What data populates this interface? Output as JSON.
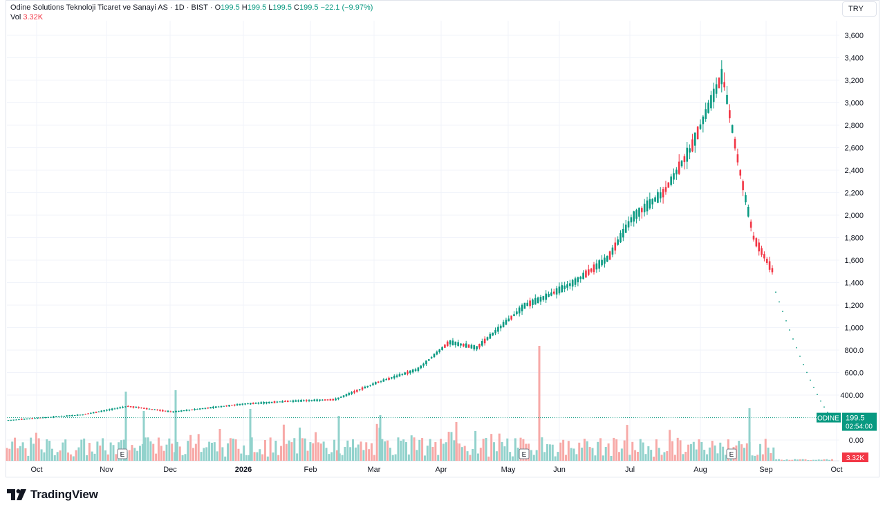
{
  "header": {
    "symbol_name": "Odine Solutions Teknoloji Ticaret ve Sanayi AS",
    "interval": "1D",
    "exchange": "BIST",
    "open_label": "O",
    "open": "199.5",
    "high_label": "H",
    "high": "199.5",
    "low_label": "L",
    "low": "199.5",
    "close_label": "C",
    "close": "199.5",
    "change": "−22.1 (−9.97%)",
    "vol_label": "Vol",
    "vol": "3.32K"
  },
  "currency": "TRY",
  "price_badge": {
    "ticker": "ODINE",
    "price": "199.5",
    "countdown": "02:54:00"
  },
  "volume_badge": "3.32K",
  "brand": "TradingView",
  "colors": {
    "up": "#089981",
    "down": "#f23645",
    "vol_up": "#92d2cc",
    "vol_down": "#f7a9a7",
    "grid": "#f0f3fa"
  },
  "chart_data": {
    "type": "candlestick",
    "y_axis": {
      "ticks": [
        0,
        400,
        600,
        800,
        1000,
        1200,
        1400,
        1600,
        1800,
        2000,
        2200,
        2400,
        2600,
        2800,
        3000,
        3200,
        3400,
        3600
      ],
      "tick_labels": [
        "0.00",
        "400.00",
        "600.0",
        "800.0",
        "1,000",
        "1,200",
        "1,400",
        "1,600",
        "1,800",
        "2,000",
        "2,200",
        "2,400",
        "2,600",
        "2,800",
        "3,000",
        "3,200",
        "3,400",
        "3,600"
      ]
    },
    "x_axis": {
      "labels": [
        "Oct",
        "Nov",
        "Dec",
        "2026",
        "Feb",
        "Mar",
        "Apr",
        "May",
        "Jun",
        "Jul",
        "Aug",
        "Sep",
        "Oct"
      ]
    },
    "earnings_markers": [
      "E",
      "E",
      "E"
    ],
    "last_price": 199.5,
    "series": [
      {
        "name": "price",
        "points": [
          {
            "date": "Oct",
            "close": 175
          },
          {
            "date": "Nov",
            "close": 225
          },
          {
            "date": "Nov",
            "close": 300
          },
          {
            "date": "Dec",
            "close": 250
          },
          {
            "date": "2026",
            "close": 320
          },
          {
            "date": "Feb",
            "close": 345
          },
          {
            "date": "Feb",
            "close": 360
          },
          {
            "date": "Mar",
            "close": 510
          },
          {
            "date": "Mar",
            "close": 630
          },
          {
            "date": "Apr",
            "close": 870
          },
          {
            "date": "Apr",
            "close": 820
          },
          {
            "date": "May",
            "close": 1200
          },
          {
            "date": "May",
            "close": 1260
          },
          {
            "date": "Jun",
            "close": 1400
          },
          {
            "date": "Jun",
            "close": 1620
          },
          {
            "date": "Jul",
            "close": 1980
          },
          {
            "date": "Jul",
            "close": 2200
          },
          {
            "date": "Aug",
            "close": 2600
          },
          {
            "date": "Aug",
            "close": 3250
          },
          {
            "date": "Aug",
            "close": 2400
          },
          {
            "date": "Sep",
            "close": 1800
          },
          {
            "date": "Sep",
            "close": 1500
          },
          {
            "date": "Oct",
            "close": 199.5
          }
        ]
      }
    ]
  }
}
